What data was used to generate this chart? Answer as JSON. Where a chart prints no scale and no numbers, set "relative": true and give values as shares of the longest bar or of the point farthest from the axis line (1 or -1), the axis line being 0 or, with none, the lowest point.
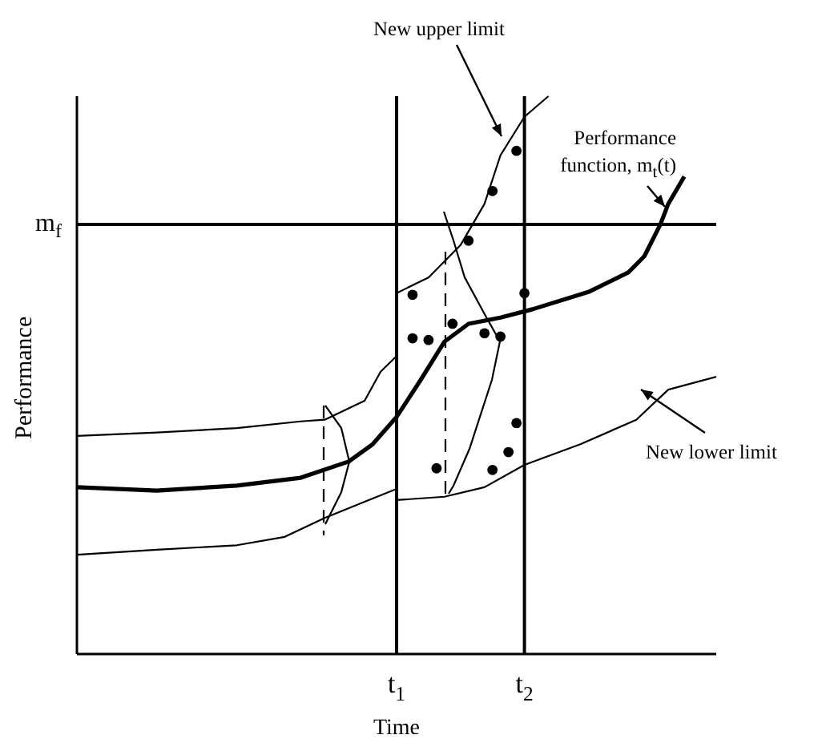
{
  "chart_data": {
    "type": "line",
    "relative": true,
    "xlabel": "Time",
    "ylabel": "Performance",
    "marker": "none",
    "line_style": "solid",
    "categories": [
      null,
      null,
      null,
      null,
      null,
      null,
      null,
      null,
      null,
      null,
      null,
      null,
      null,
      null,
      null,
      null,
      null,
      null,
      null,
      null,
      null,
      null,
      null,
      null,
      null,
      null,
      null,
      null,
      null,
      null,
      null,
      null,
      null,
      null,
      null,
      null,
      null,
      null,
      null,
      null,
      "t$_{1}$",
      null,
      null,
      null,
      null,
      null,
      null,
      null,
      null,
      null,
      null,
      null,
      null,
      null,
      null,
      null,
      "t$_{2}$",
      null,
      null,
      null,
      null,
      null,
      null,
      null,
      null,
      null,
      null,
      null,
      null,
      null,
      null,
      null,
      null,
      null,
      null,
      null,
      null,
      null,
      null,
      null,
      null
    ],
    "ref_lines": [
      {
        "axis": "y",
        "value": 0.77,
        "label": "m$_{f}$",
        "color": "#000000"
      },
      {
        "axis": "x",
        "value": "t$_{1}$",
        "color": "#000000"
      },
      {
        "axis": "x",
        "value": "t$_{2}$",
        "color": "#000000"
      }
    ],
    "series": [
      {
        "name": "Performance function, m$_{t}$(t)",
        "color": "#000000",
        "values": [
          0.299,
          null,
          null,
          null,
          null,
          null,
          null,
          null,
          null,
          null,
          0.293,
          null,
          null,
          null,
          null,
          null,
          null,
          null,
          null,
          null,
          0.302,
          null,
          null,
          null,
          null,
          null,
          null,
          null,
          0.316,
          null,
          null,
          null,
          null,
          null,
          0.345,
          null,
          null,
          0.376,
          null,
          null,
          0.425,
          null,
          null,
          0.491,
          null,
          null,
          0.56,
          null,
          null,
          0.592,
          null,
          null,
          null,
          0.603,
          null,
          null,
          null,
          0.618,
          null,
          null,
          null,
          null,
          null,
          null,
          0.649,
          null,
          null,
          null,
          null,
          0.684,
          null,
          0.713,
          null,
          0.77,
          0.807,
          null,
          0.856,
          null,
          null,
          null,
          null
        ]
      },
      {
        "name": "New upper limit",
        "color": "#000000",
        "values": [
          null,
          null,
          null,
          null,
          null,
          null,
          null,
          null,
          null,
          null,
          null,
          null,
          null,
          null,
          null,
          null,
          null,
          null,
          null,
          null,
          null,
          null,
          null,
          null,
          null,
          null,
          null,
          null,
          null,
          null,
          null,
          null,
          null,
          null,
          null,
          null,
          null,
          null,
          null,
          null,
          0.647,
          null,
          null,
          null,
          0.675,
          null,
          null,
          null,
          0.733,
          null,
          null,
          0.807,
          null,
          0.894,
          null,
          null,
          0.963,
          null,
          null,
          1.0,
          null,
          null,
          null,
          null,
          null,
          null,
          null,
          null,
          null,
          null,
          null,
          null,
          null,
          null,
          null,
          null,
          null,
          null,
          null,
          null,
          null
        ]
      },
      {
        "name": "New lower limit",
        "color": "#000000",
        "values": [
          null,
          null,
          null,
          null,
          null,
          null,
          null,
          null,
          null,
          null,
          null,
          null,
          null,
          null,
          null,
          null,
          null,
          null,
          null,
          null,
          null,
          null,
          null,
          null,
          null,
          null,
          null,
          null,
          null,
          null,
          null,
          null,
          null,
          null,
          null,
          null,
          null,
          null,
          null,
          null,
          0.276,
          null,
          null,
          null,
          null,
          null,
          0.282,
          null,
          null,
          null,
          null,
          0.299,
          null,
          null,
          null,
          null,
          0.339,
          null,
          null,
          null,
          null,
          null,
          null,
          0.376,
          null,
          null,
          null,
          null,
          null,
          null,
          0.42,
          null,
          null,
          null,
          0.474,
          null,
          null,
          null,
          null,
          null,
          0.497
        ]
      },
      {
        "color": "#000000",
        "values": [
          0.391,
          null,
          null,
          null,
          null,
          null,
          null,
          null,
          null,
          null,
          0.397,
          null,
          null,
          null,
          null,
          null,
          null,
          null,
          null,
          null,
          0.405,
          null,
          null,
          null,
          null,
          null,
          null,
          null,
          0.417,
          null,
          null,
          0.42,
          null,
          null,
          null,
          null,
          0.454,
          null,
          0.506,
          null,
          0.534,
          null,
          null,
          null,
          null,
          null,
          null,
          null,
          null,
          null,
          null,
          null,
          null,
          null,
          null,
          null,
          null,
          null,
          null,
          null,
          null,
          null,
          null,
          null,
          null,
          null,
          null,
          null,
          null,
          null,
          null,
          null,
          null,
          null,
          null,
          null,
          null,
          null,
          null,
          null,
          null
        ]
      },
      {
        "color": "#000000",
        "values": [
          0.178,
          null,
          null,
          null,
          null,
          null,
          null,
          null,
          null,
          null,
          0.187,
          null,
          null,
          null,
          null,
          null,
          null,
          null,
          null,
          null,
          0.195,
          null,
          null,
          null,
          null,
          null,
          0.21,
          null,
          null,
          null,
          null,
          0.244,
          null,
          null,
          null,
          null,
          0.273,
          null,
          null,
          null,
          0.296,
          null,
          null,
          null,
          null,
          null,
          null,
          null,
          null,
          null,
          null,
          null,
          null,
          null,
          null,
          null,
          null,
          null,
          null,
          null,
          null,
          null,
          null,
          null,
          null,
          null,
          null,
          null,
          null,
          null,
          null,
          null,
          null,
          null,
          null,
          null,
          null,
          null,
          null,
          null,
          null
        ]
      },
      {
        "type": "scatter",
        "marker": "circle",
        "color": "#000000",
        "values": [
          null,
          null,
          null,
          null,
          null,
          null,
          null,
          null,
          null,
          null,
          null,
          null,
          null,
          null,
          null,
          null,
          null,
          null,
          null,
          null,
          null,
          null,
          null,
          null,
          null,
          null,
          null,
          null,
          null,
          null,
          null,
          null,
          null,
          null,
          null,
          null,
          null,
          null,
          null,
          null,
          null,
          null,
          0.644,
          null,
          0.563,
          0.333,
          null,
          0.592,
          null,
          0.741,
          null,
          0.575,
          0.83,
          0.569,
          0.362,
          0.902,
          0.647,
          null,
          null,
          null,
          null,
          null,
          null,
          null,
          null,
          null,
          null,
          null,
          null,
          null,
          null,
          null,
          null,
          null,
          null,
          null,
          null,
          null,
          null,
          null,
          null
        ]
      },
      {
        "type": "scatter",
        "marker": "circle",
        "color": "#000000",
        "values": [
          null,
          null,
          null,
          null,
          null,
          null,
          null,
          null,
          null,
          null,
          null,
          null,
          null,
          null,
          null,
          null,
          null,
          null,
          null,
          null,
          null,
          null,
          null,
          null,
          null,
          null,
          null,
          null,
          null,
          null,
          null,
          null,
          null,
          null,
          null,
          null,
          null,
          null,
          null,
          null,
          null,
          null,
          0.566,
          null,
          null,
          null,
          null,
          null,
          null,
          null,
          null,
          null,
          0.33,
          null,
          null,
          0.414,
          null,
          null,
          null,
          null,
          null,
          null,
          null,
          null,
          null,
          null,
          null,
          null,
          null,
          null,
          null,
          null,
          null,
          null,
          null,
          null,
          null,
          null,
          null,
          null,
          null
        ]
      }
    ]
  }
}
